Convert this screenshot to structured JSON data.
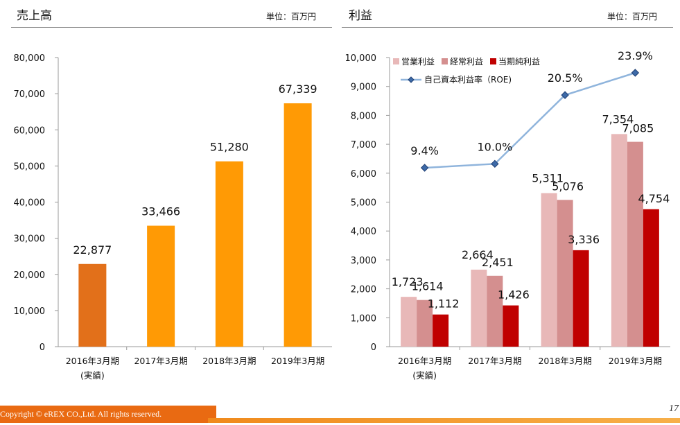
{
  "sales_panel": {
    "title": "売上高",
    "unit": "単位：百万円"
  },
  "profit_panel": {
    "title": "利益",
    "unit": "単位：百万円"
  },
  "footer": {
    "copyright": "Copyright © eREX CO.,Ltd.    All rights reserved.",
    "page_number": "17"
  },
  "colors": {
    "sales_actual": "#e2701a",
    "sales_plan": "#ff9a05",
    "operating": "#e8b8b8",
    "ordinary": "#d48f8f",
    "net": "#c00000",
    "roe_line": "#8fb4dc",
    "roe_marker": "#1f3f73",
    "footer": "#e96a12"
  },
  "chart_data": [
    {
      "type": "bar",
      "categories": [
        "2016年3月期",
        "2017年3月期",
        "2018年3月期",
        "2019年3月期"
      ],
      "category_sublabels": [
        "(実績)",
        "",
        "",
        ""
      ],
      "values": [
        22877,
        33466,
        51280,
        67339
      ],
      "data_labels": [
        "22,877",
        "33,466",
        "51,280",
        "67,339"
      ],
      "y_ticks": [
        "0",
        "10,000",
        "20,000",
        "30,000",
        "40,000",
        "50,000",
        "60,000",
        "70,000",
        "80,000"
      ],
      "ylim": [
        0,
        80000
      ],
      "grid": false
    },
    {
      "type": "bar",
      "categories": [
        "2016年3月期",
        "2017年3月期",
        "2018年3月期",
        "2019年3月期"
      ],
      "category_sublabels": [
        "(実績)",
        "",
        "",
        ""
      ],
      "series": [
        {
          "name": "営業利益",
          "values": [
            1723,
            2664,
            5311,
            7354
          ],
          "data_labels": [
            "1,723",
            "2,664",
            "5,311",
            "7,354"
          ]
        },
        {
          "name": "経常利益",
          "values": [
            1614,
            2451,
            5076,
            7085
          ],
          "data_labels": [
            "1,614",
            "2,451",
            "5,076",
            "7,085"
          ]
        },
        {
          "name": "当期純利益",
          "values": [
            1112,
            1426,
            3336,
            4754
          ],
          "data_labels": [
            "1,112",
            "1,426",
            "3,336",
            "4,754"
          ]
        }
      ],
      "line_series": {
        "name": "自己資本利益率（ROE)",
        "values": [
          9.4,
          10.0,
          20.5,
          23.9
        ],
        "data_labels": [
          "9.4%",
          "10.0%",
          "20.5%",
          "23.9%"
        ],
        "secondary_axis_shown": false
      },
      "y_ticks": [
        "0",
        "1,000",
        "2,000",
        "3,000",
        "4,000",
        "5,000",
        "6,000",
        "7,000",
        "8,000",
        "9,000",
        "10,000"
      ],
      "ylim": [
        0,
        10000
      ],
      "legend_position": "top-left",
      "grid": false
    }
  ]
}
